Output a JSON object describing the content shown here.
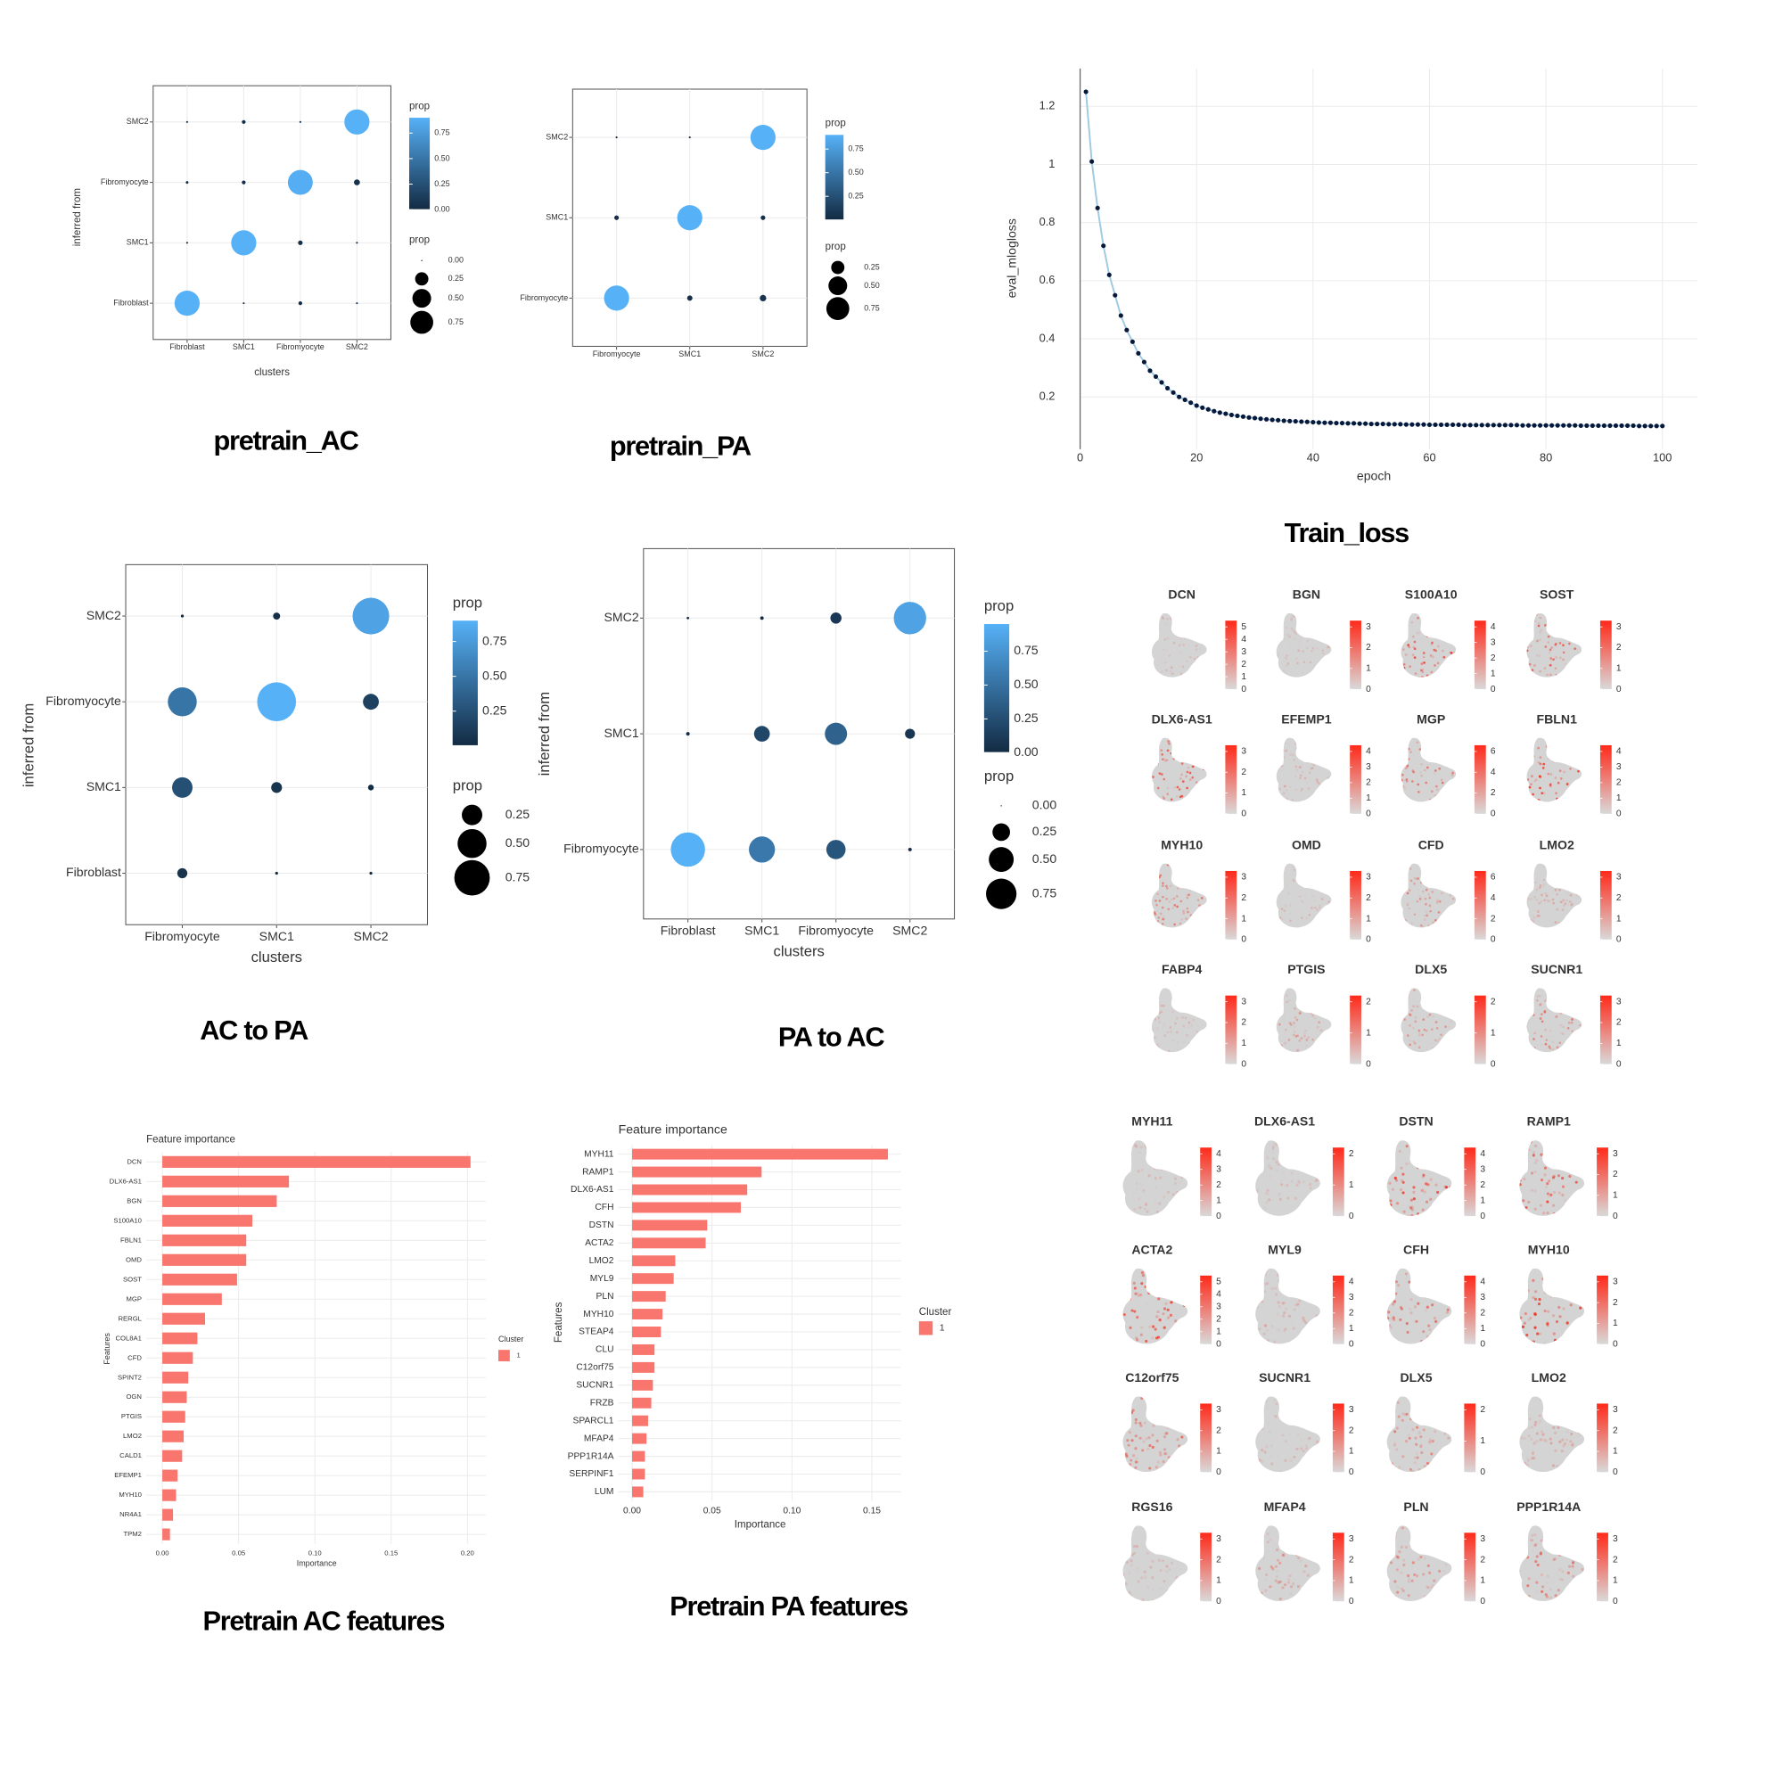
{
  "chart_data": [
    {
      "type": "dot",
      "caption": "pretrain_AC",
      "x_label": "clusters",
      "y_label": "inferred from",
      "x_categories": [
        "Fibroblast",
        "SMC1",
        "Fibromyocyte",
        "SMC2"
      ],
      "y_categories": [
        "Fibroblast",
        "SMC1",
        "Fibromyocyte",
        "SMC2"
      ],
      "values": [
        [
          0.9,
          0.005,
          0.02,
          0.005
        ],
        [
          0.005,
          0.9,
          0.03,
          0.005
        ],
        [
          0.01,
          0.02,
          0.88,
          0.05
        ],
        [
          0.005,
          0.02,
          0.005,
          0.9
        ]
      ],
      "color_legend_title": "prop",
      "color_ticks": [
        {
          "value": 0,
          "label": "0.00"
        },
        0.25,
        {
          "value": 0.5,
          "label": "0.50"
        },
        0.75
      ],
      "size_legend_title": "prop",
      "size_ticks": [
        {
          "value": 0,
          "label": "0.00"
        },
        0.25,
        {
          "value": 0.5,
          "label": "0.50"
        },
        0.75
      ],
      "color_low": "#132B43",
      "color_high": "#56B1F7"
    },
    {
      "type": "dot",
      "caption": "pretrain_PA",
      "x_categories": [
        "Fibromyocyte",
        "SMC1",
        "SMC2"
      ],
      "y_categories": [
        "Fibromyocyte",
        "SMC1",
        "SMC2"
      ],
      "values": [
        [
          0.9,
          0.04,
          0.06
        ],
        [
          0.03,
          0.9,
          0.03
        ],
        [
          0.005,
          0.005,
          0.9
        ]
      ],
      "color_legend_title": "prop",
      "color_ticks": [
        0.25,
        {
          "value": 0.5,
          "label": "0.50"
        },
        0.75
      ],
      "size_legend_title": "prop",
      "size_ticks": [
        0.25,
        {
          "value": 0.5,
          "label": "0.50"
        },
        0.75
      ],
      "color_low": "#132B43",
      "color_high": "#56B1F7"
    },
    {
      "type": "line",
      "caption": "Train_loss",
      "x_label": "epoch",
      "y_label": "eval_mlogloss",
      "x": [
        1,
        2,
        3,
        4,
        5,
        6,
        7,
        8,
        9,
        10,
        11,
        12,
        13,
        14,
        15,
        16,
        17,
        18,
        19,
        20,
        21,
        22,
        23,
        24,
        25,
        26,
        27,
        28,
        29,
        30,
        31,
        32,
        33,
        34,
        35,
        36,
        37,
        38,
        39,
        40,
        41,
        42,
        43,
        44,
        45,
        46,
        47,
        48,
        49,
        50,
        51,
        52,
        53,
        54,
        55,
        56,
        57,
        58,
        59,
        60,
        61,
        62,
        63,
        64,
        65,
        66,
        67,
        68,
        69,
        70,
        71,
        72,
        73,
        74,
        75,
        76,
        77,
        78,
        79,
        80,
        81,
        82,
        83,
        84,
        85,
        86,
        87,
        88,
        89,
        90,
        91,
        92,
        93,
        94,
        95,
        96,
        97,
        98,
        99,
        100
      ],
      "values": [
        1.25,
        1.01,
        0.85,
        0.72,
        0.62,
        0.55,
        0.48,
        0.43,
        0.39,
        0.35,
        0.32,
        0.29,
        0.27,
        0.25,
        0.23,
        0.215,
        0.2,
        0.19,
        0.18,
        0.17,
        0.163,
        0.157,
        0.151,
        0.146,
        0.142,
        0.138,
        0.135,
        0.132,
        0.129,
        0.127,
        0.125,
        0.123,
        0.121,
        0.12,
        0.118,
        0.117,
        0.116,
        0.115,
        0.114,
        0.113,
        0.112,
        0.111,
        0.111,
        0.11,
        0.11,
        0.109,
        0.109,
        0.108,
        0.108,
        0.107,
        0.107,
        0.107,
        0.106,
        0.106,
        0.106,
        0.105,
        0.105,
        0.105,
        0.105,
        0.104,
        0.104,
        0.104,
        0.104,
        0.104,
        0.104,
        0.103,
        0.103,
        0.103,
        0.103,
        0.103,
        0.103,
        0.103,
        0.103,
        0.103,
        0.103,
        0.102,
        0.102,
        0.102,
        0.102,
        0.102,
        0.102,
        0.102,
        0.102,
        0.102,
        0.102,
        0.101,
        0.101,
        0.101,
        0.101,
        0.101,
        0.101,
        0.101,
        0.101,
        0.101,
        0.101,
        0.1,
        0.1,
        0.1,
        0.1,
        0.1
      ],
      "xlim": [
        0,
        106
      ],
      "ylim": [
        0.02,
        1.33
      ],
      "xticks": [
        0,
        20,
        40,
        60,
        80,
        100
      ],
      "yticks": [
        0.2,
        0.4,
        0.6,
        0.8,
        1,
        1.2
      ],
      "line_color": "#9ecae1",
      "point_color": "#08183a",
      "grid": true
    },
    {
      "type": "dot",
      "caption": "AC to PA",
      "x_label": "clusters",
      "y_label": "inferred from",
      "x_categories": [
        "Fibromyocyte",
        "SMC1",
        "SMC2"
      ],
      "y_categories": [
        "Fibroblast",
        "SMC1",
        "Fibromyocyte",
        "SMC2"
      ],
      "values": [
        [
          0.06,
          0.005,
          0.005
        ],
        [
          0.25,
          0.07,
          0.02
        ],
        [
          0.5,
          0.9,
          0.15
        ],
        [
          0.005,
          0.03,
          0.8
        ]
      ],
      "color_legend_title": "prop",
      "color_ticks": [
        0.25,
        {
          "value": 0.5,
          "label": "0.50"
        },
        0.75
      ],
      "size_legend_title": "prop",
      "size_ticks": [
        0.25,
        {
          "value": 0.5,
          "label": "0.50"
        },
        0.75
      ],
      "color_low": "#132B43",
      "color_high": "#56B1F7"
    },
    {
      "type": "dot",
      "caption": "PA to AC",
      "x_label": "clusters",
      "y_label": "inferred from",
      "x_categories": [
        "Fibroblast",
        "SMC1",
        "Fibromyocyte",
        "SMC2"
      ],
      "y_categories": [
        "Fibromyocyte",
        "SMC1",
        "SMC2"
      ],
      "values": [
        [
          0.95,
          0.55,
          0.3,
          0.01
        ],
        [
          0.01,
          0.2,
          0.4,
          0.08
        ],
        [
          0.005,
          0.01,
          0.1,
          0.85
        ]
      ],
      "color_legend_title": "prop",
      "color_ticks": [
        {
          "value": 0,
          "label": "0.00"
        },
        0.25,
        {
          "value": 0.5,
          "label": "0.50"
        },
        0.75
      ],
      "size_legend_title": "prop",
      "size_ticks": [
        {
          "value": 0,
          "label": "0.00"
        },
        0.25,
        {
          "value": 0.5,
          "label": "0.50"
        },
        0.75
      ],
      "color_low": "#132B43",
      "color_high": "#56B1F7"
    },
    {
      "type": "feature_plot",
      "color_low": "#d9d9d9",
      "color_high": "#ff2a1a",
      "panels": [
        {
          "title": "DCN",
          "ticks": [
            0,
            1,
            2,
            3,
            4,
            5
          ]
        },
        {
          "title": "BGN",
          "ticks": [
            0,
            1,
            2,
            3
          ]
        },
        {
          "title": "S100A10",
          "ticks": [
            0,
            1,
            2,
            3,
            4
          ]
        },
        {
          "title": "SOST",
          "ticks": [
            0,
            1,
            2,
            3
          ]
        },
        {
          "title": "DLX6-AS1",
          "ticks": [
            0,
            1,
            2,
            3
          ]
        },
        {
          "title": "EFEMP1",
          "ticks": [
            0,
            1,
            2,
            3,
            4
          ]
        },
        {
          "title": "MGP",
          "ticks": [
            0,
            2,
            4,
            6
          ]
        },
        {
          "title": "FBLN1",
          "ticks": [
            0,
            1,
            2,
            3,
            4
          ]
        },
        {
          "title": "MYH10",
          "ticks": [
            0,
            1,
            2,
            3
          ]
        },
        {
          "title": "OMD",
          "ticks": [
            0,
            1,
            2,
            3
          ]
        },
        {
          "title": "CFD",
          "ticks": [
            0,
            2,
            4,
            6
          ]
        },
        {
          "title": "LMO2",
          "ticks": [
            0,
            1,
            2,
            3
          ]
        },
        {
          "title": "FABP4",
          "ticks": [
            0,
            1,
            2,
            3
          ]
        },
        {
          "title": "PTGIS",
          "ticks": [
            0,
            1,
            2
          ]
        },
        {
          "title": "DLX5",
          "ticks": [
            0,
            1,
            2
          ]
        },
        {
          "title": "SUCNR1",
          "ticks": [
            0,
            1,
            2,
            3
          ]
        }
      ]
    },
    {
      "type": "hbar",
      "caption": "Pretrain AC features",
      "title": "Feature importance",
      "x_label": "Importance",
      "y_label": "Features",
      "categories": [
        "DCN",
        "DLX6-AS1",
        "BGN",
        "S100A10",
        "FBLN1",
        "OMD",
        "SOST",
        "MGP",
        "RERGL",
        "COL8A1",
        "CFD",
        "SPINT2",
        "OGN",
        "PTGIS",
        "LMO2",
        "CALD1",
        "EFEMP1",
        "MYH10",
        "NR4A1",
        "TPM2"
      ],
      "values": [
        0.202,
        0.083,
        0.075,
        0.059,
        0.055,
        0.055,
        0.049,
        0.039,
        0.028,
        0.023,
        0.02,
        0.017,
        0.016,
        0.015,
        0.014,
        0.013,
        0.01,
        0.009,
        0.007,
        0.005
      ],
      "color": "#F8766D",
      "xlim": [
        -0.0105,
        0.212
      ],
      "xticks": [
        {
          "value": 0,
          "label": "0.00"
        },
        0.05,
        {
          "value": 0.1,
          "label": "0.10"
        },
        0.15,
        {
          "value": 0.2,
          "label": "0.20"
        }
      ],
      "legend_title": "Cluster",
      "legend_labels": [
        "1"
      ]
    },
    {
      "type": "hbar",
      "caption": "Pretrain PA features",
      "title": "Feature importance",
      "x_label": "Importance",
      "y_label": "Features",
      "categories": [
        "MYH11",
        "RAMP1",
        "DLX6-AS1",
        "CFH",
        "DSTN",
        "ACTA2",
        "LMO2",
        "MYL9",
        "PLN",
        "MYH10",
        "STEAP4",
        "CLU",
        "C12orf75",
        "SUCNR1",
        "FRZB",
        "SPARCL1",
        "MFAP4",
        "PPP1R14A",
        "SERPINF1",
        "LUM"
      ],
      "values": [
        0.16,
        0.081,
        0.072,
        0.068,
        0.047,
        0.046,
        0.027,
        0.026,
        0.021,
        0.019,
        0.018,
        0.014,
        0.014,
        0.013,
        0.012,
        0.01,
        0.009,
        0.008,
        0.008,
        0.007
      ],
      "color": "#F8766D",
      "xlim": [
        -0.0086,
        0.168
      ],
      "xticks": [
        {
          "value": 0,
          "label": "0.00"
        },
        0.05,
        {
          "value": 0.1,
          "label": "0.10"
        },
        0.15
      ],
      "legend_title": "Cluster",
      "legend_labels": [
        "1"
      ]
    },
    {
      "type": "feature_plot",
      "color_low": "#d9d9d9",
      "color_high": "#ff2a1a",
      "panels": [
        {
          "title": "MYH11",
          "ticks": [
            0,
            1,
            2,
            3,
            4
          ]
        },
        {
          "title": "DLX6-AS1",
          "ticks": [
            0,
            1,
            2
          ]
        },
        {
          "title": "DSTN",
          "ticks": [
            0,
            1,
            2,
            3,
            4
          ]
        },
        {
          "title": "RAMP1",
          "ticks": [
            0,
            1,
            2,
            3
          ]
        },
        {
          "title": "ACTA2",
          "ticks": [
            0,
            1,
            2,
            3,
            4,
            5
          ]
        },
        {
          "title": "MYL9",
          "ticks": [
            0,
            1,
            2,
            3,
            4
          ]
        },
        {
          "title": "CFH",
          "ticks": [
            0,
            1,
            2,
            3,
            4
          ]
        },
        {
          "title": "MYH10",
          "ticks": [
            0,
            1,
            2,
            3
          ]
        },
        {
          "title": "C12orf75",
          "ticks": [
            0,
            1,
            2,
            3
          ]
        },
        {
          "title": "SUCNR1",
          "ticks": [
            0,
            1,
            2,
            3
          ]
        },
        {
          "title": "DLX5",
          "ticks": [
            0,
            1,
            2
          ]
        },
        {
          "title": "LMO2",
          "ticks": [
            0,
            1,
            2,
            3
          ]
        },
        {
          "title": "RGS16",
          "ticks": [
            0,
            1,
            2,
            3
          ]
        },
        {
          "title": "MFAP4",
          "ticks": [
            0,
            1,
            2,
            3
          ]
        },
        {
          "title": "PLN",
          "ticks": [
            0,
            1,
            2,
            3
          ]
        },
        {
          "title": "PPP1R14A",
          "ticks": [
            0,
            1,
            2,
            3
          ]
        }
      ]
    }
  ]
}
